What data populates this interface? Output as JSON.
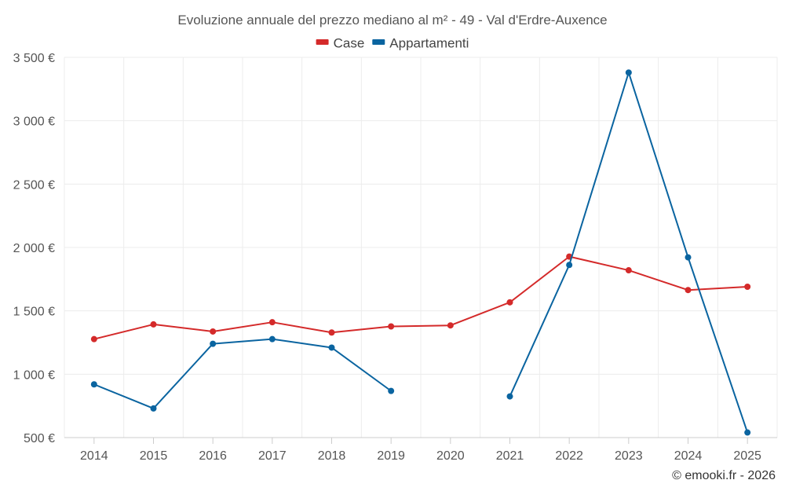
{
  "chart_data": {
    "type": "line",
    "title": "Evoluzione annuale del prezzo mediano al m² - 49 - Val d'Erdre-Auxence",
    "categories": [
      "2014",
      "2015",
      "2016",
      "2017",
      "2018",
      "2019",
      "2020",
      "2021",
      "2022",
      "2023",
      "2024",
      "2025"
    ],
    "series": [
      {
        "name": "Case",
        "color": "#d42a2a",
        "values": [
          1277,
          1393,
          1337,
          1410,
          1329,
          1377,
          1385,
          1567,
          1928,
          1820,
          1664,
          1690
        ]
      },
      {
        "name": "Appartamenti",
        "color": "#0a64a0",
        "values": [
          920,
          730,
          1240,
          1277,
          1210,
          868,
          null,
          825,
          1862,
          3380,
          1922,
          540
        ]
      }
    ],
    "ylim": [
      500,
      3500
    ],
    "yticks": [
      500,
      1000,
      1500,
      2000,
      2500,
      3000,
      3500
    ],
    "ytick_labels": [
      "500 €",
      "1 000 €",
      "1 500 €",
      "2 000 €",
      "2 500 €",
      "3 000 €",
      "3 500 €"
    ],
    "xlabel": "",
    "ylabel": "",
    "grid": true,
    "legend_position": "top-center"
  },
  "credit": "© emooki.fr - 2026"
}
